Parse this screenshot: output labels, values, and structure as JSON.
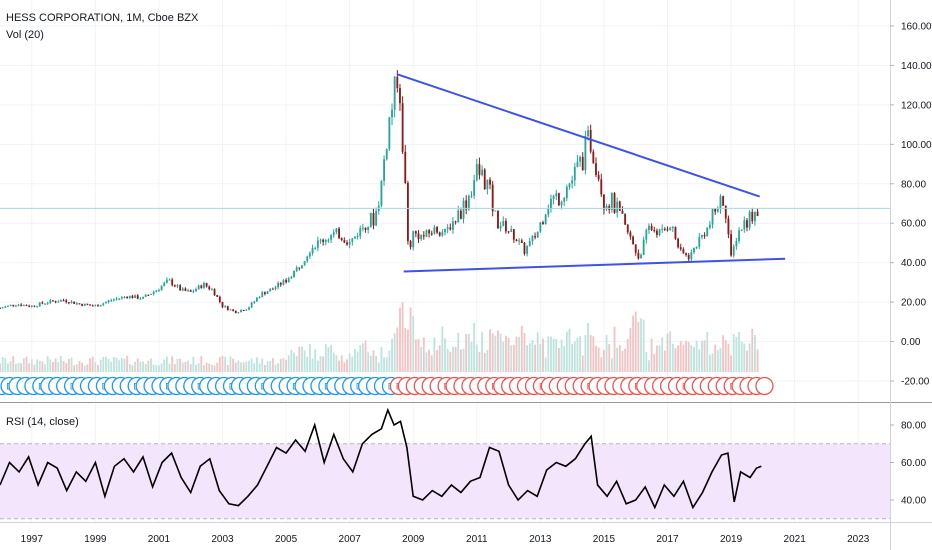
{
  "chart_data": [
    {
      "type": "candlestick",
      "legend": {
        "symbol_line": "HESS CORPORATION, 1M, Cboe BZX",
        "volume_label": "Vol (20)"
      },
      "y_ticks": [
        "160.00",
        "140.00",
        "120.00",
        "100.00",
        "80.00",
        "60.00",
        "40.00",
        "20.00",
        "0.00",
        "-20.00"
      ],
      "ylim": [
        -25,
        165
      ],
      "xlim": [
        1996.0,
        2024.0
      ],
      "horizontal_line": {
        "y": 67.5,
        "color": "#a3d9dd"
      },
      "trendlines": [
        {
          "name": "upper",
          "color": "#3d53e6",
          "points": [
            [
              2008.5,
              135.5
            ],
            [
              2019.9,
              73.5
            ]
          ]
        },
        {
          "name": "lower",
          "color": "#3d53e6",
          "points": [
            [
              2008.7,
              35.5
            ],
            [
              2020.7,
              42.0
            ]
          ]
        }
      ],
      "price_path": [
        [
          1996.0,
          17
        ],
        [
          1996.5,
          19
        ],
        [
          1997.0,
          18
        ],
        [
          1997.5,
          20
        ],
        [
          1998.0,
          21
        ],
        [
          1998.5,
          19
        ],
        [
          1999.0,
          18
        ],
        [
          1999.5,
          21
        ],
        [
          2000.0,
          23
        ],
        [
          2000.5,
          22
        ],
        [
          2001.0,
          27
        ],
        [
          2001.3,
          31
        ],
        [
          2001.7,
          26
        ],
        [
          2002.0,
          25
        ],
        [
          2002.4,
          29
        ],
        [
          2002.7,
          26
        ],
        [
          2003.0,
          18
        ],
        [
          2003.4,
          15
        ],
        [
          2003.8,
          17
        ],
        [
          2004.2,
          24
        ],
        [
          2004.6,
          27
        ],
        [
          2005.0,
          31
        ],
        [
          2005.4,
          38
        ],
        [
          2005.8,
          48
        ],
        [
          2006.2,
          52
        ],
        [
          2006.6,
          55
        ],
        [
          2007.0,
          50
        ],
        [
          2007.4,
          58
        ],
        [
          2007.8,
          63
        ],
        [
          2008.0,
          80
        ],
        [
          2008.2,
          108
        ],
        [
          2008.4,
          125
        ],
        [
          2008.55,
          128
        ],
        [
          2008.7,
          95
        ],
        [
          2008.85,
          45
        ],
        [
          2009.0,
          55
        ],
        [
          2009.3,
          53
        ],
        [
          2009.7,
          57
        ],
        [
          2010.0,
          55
        ],
        [
          2010.3,
          62
        ],
        [
          2010.7,
          72
        ],
        [
          2011.0,
          86
        ],
        [
          2011.3,
          82
        ],
        [
          2011.6,
          62
        ],
        [
          2011.9,
          58
        ],
        [
          2012.2,
          53
        ],
        [
          2012.5,
          46
        ],
        [
          2012.9,
          55
        ],
        [
          2013.2,
          70
        ],
        [
          2013.6,
          74
        ],
        [
          2014.0,
          82
        ],
        [
          2014.3,
          92
        ],
        [
          2014.55,
          103
        ],
        [
          2014.8,
          88
        ],
        [
          2015.0,
          72
        ],
        [
          2015.3,
          70
        ],
        [
          2015.6,
          60
        ],
        [
          2015.9,
          50
        ],
        [
          2016.1,
          42
        ],
        [
          2016.4,
          58
        ],
        [
          2016.8,
          55
        ],
        [
          2017.1,
          60
        ],
        [
          2017.4,
          45
        ],
        [
          2017.7,
          43
        ],
        [
          2018.0,
          52
        ],
        [
          2018.3,
          58
        ],
        [
          2018.6,
          70
        ],
        [
          2018.8,
          72
        ],
        [
          2019.0,
          42
        ],
        [
          2019.2,
          55
        ],
        [
          2019.5,
          62
        ],
        [
          2019.75,
          66
        ],
        [
          2019.9,
          68
        ]
      ],
      "volume_note": "Volume bars shown at the bottom of the main pane",
      "event_markers": {
        "dividend_label": "D",
        "earnings_label": "E",
        "split_year": 2008.5
      }
    },
    {
      "type": "line",
      "title": "RSI (14, close)",
      "y_ticks": [
        "80.00",
        "60.00",
        "40.00"
      ],
      "ylim": [
        25,
        92
      ],
      "band": [
        30,
        70
      ],
      "series": [
        {
          "name": "",
          "values": [
            [
              1996.0,
              48
            ],
            [
              1996.3,
              60
            ],
            [
              1996.6,
              55
            ],
            [
              1996.9,
              63
            ],
            [
              1997.2,
              48
            ],
            [
              1997.5,
              60
            ],
            [
              1997.8,
              57
            ],
            [
              1998.1,
              45
            ],
            [
              1998.4,
              55
            ],
            [
              1998.7,
              50
            ],
            [
              1999.0,
              60
            ],
            [
              1999.3,
              42
            ],
            [
              1999.6,
              58
            ],
            [
              1999.9,
              62
            ],
            [
              2000.2,
              55
            ],
            [
              2000.5,
              63
            ],
            [
              2000.8,
              47
            ],
            [
              2001.1,
              60
            ],
            [
              2001.4,
              65
            ],
            [
              2001.7,
              52
            ],
            [
              2002.0,
              44
            ],
            [
              2002.3,
              58
            ],
            [
              2002.6,
              62
            ],
            [
              2002.9,
              45
            ],
            [
              2003.2,
              38
            ],
            [
              2003.5,
              37
            ],
            [
              2003.8,
              42
            ],
            [
              2004.1,
              48
            ],
            [
              2004.4,
              58
            ],
            [
              2004.7,
              68
            ],
            [
              2005.0,
              65
            ],
            [
              2005.3,
              72
            ],
            [
              2005.6,
              66
            ],
            [
              2005.9,
              80
            ],
            [
              2006.2,
              60
            ],
            [
              2006.5,
              75
            ],
            [
              2006.8,
              62
            ],
            [
              2007.1,
              55
            ],
            [
              2007.4,
              70
            ],
            [
              2007.7,
              75
            ],
            [
              2008.0,
              78
            ],
            [
              2008.2,
              88
            ],
            [
              2008.4,
              80
            ],
            [
              2008.6,
              82
            ],
            [
              2008.8,
              68
            ],
            [
              2009.0,
              42
            ],
            [
              2009.3,
              40
            ],
            [
              2009.6,
              45
            ],
            [
              2009.9,
              42
            ],
            [
              2010.2,
              48
            ],
            [
              2010.5,
              44
            ],
            [
              2010.8,
              50
            ],
            [
              2011.1,
              52
            ],
            [
              2011.4,
              68
            ],
            [
              2011.7,
              66
            ],
            [
              2012.0,
              48
            ],
            [
              2012.3,
              40
            ],
            [
              2012.6,
              45
            ],
            [
              2012.9,
              42
            ],
            [
              2013.2,
              56
            ],
            [
              2013.5,
              60
            ],
            [
              2013.8,
              58
            ],
            [
              2014.1,
              62
            ],
            [
              2014.4,
              70
            ],
            [
              2014.6,
              74
            ],
            [
              2014.8,
              48
            ],
            [
              2015.1,
              42
            ],
            [
              2015.4,
              50
            ],
            [
              2015.7,
              38
            ],
            [
              2016.0,
              40
            ],
            [
              2016.3,
              47
            ],
            [
              2016.6,
              36
            ],
            [
              2016.9,
              48
            ],
            [
              2017.2,
              42
            ],
            [
              2017.5,
              50
            ],
            [
              2017.8,
              36
            ],
            [
              2018.1,
              44
            ],
            [
              2018.4,
              55
            ],
            [
              2018.7,
              64
            ],
            [
              2018.9,
              65
            ],
            [
              2019.1,
              39
            ],
            [
              2019.3,
              55
            ],
            [
              2019.6,
              52
            ],
            [
              2019.8,
              57
            ],
            [
              2019.95,
              58
            ]
          ]
        }
      ]
    }
  ],
  "x_axis_ticks": [
    "1997",
    "1999",
    "2001",
    "2003",
    "2005",
    "2007",
    "2009",
    "2011",
    "2013",
    "2015",
    "2017",
    "2019",
    "2021",
    "2023"
  ],
  "colors": {
    "bull": "#26a69a",
    "bear": "#8b1a1a",
    "trendline": "#3d53e6",
    "rsi_line": "#000000",
    "rsi_band": "#f3e5fb",
    "dividend_marker": "#2196f3",
    "earnings_marker": "#ef5350"
  }
}
